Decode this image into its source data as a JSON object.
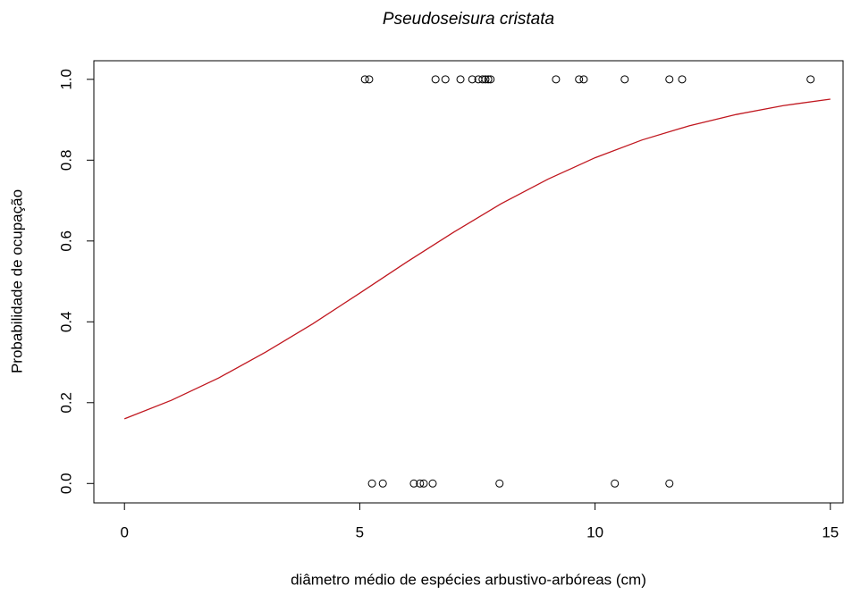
{
  "chart_data": {
    "type": "scatter",
    "title": "Pseudoseisura cristata",
    "x_label": "diâmetro médio de espécies arbustivo-arbóreas (cm)",
    "y_label": "Probabilidade de ocupação",
    "xlim": [
      -0.65,
      15.27
    ],
    "ylim": [
      -0.048,
      1.046
    ],
    "xticks": [
      0,
      5,
      10,
      15
    ],
    "yticks": [
      {
        "value": 0,
        "label": "0.0"
      },
      {
        "value": 0.2,
        "label": "0.2"
      },
      {
        "value": 0.4,
        "label": "0.4"
      },
      {
        "value": 0.6,
        "label": "0.6"
      },
      {
        "value": 0.8,
        "label": "0.8"
      },
      {
        "value": 1,
        "label": "1.0"
      }
    ],
    "grid": false,
    "series": [
      {
        "mark": "circle",
        "color": "#000000",
        "x": [
          5.11,
          5.2,
          6.61,
          6.82,
          7.14,
          7.39,
          7.52,
          7.61,
          7.67,
          7.73,
          7.78,
          9.17,
          9.66,
          9.76,
          10.63,
          11.58,
          11.85,
          14.58,
          5.26,
          5.49,
          6.15,
          6.28,
          6.36,
          6.55,
          7.97,
          10.42,
          11.58
        ],
        "values": [
          1,
          1,
          1,
          1,
          1,
          1,
          1,
          1,
          1,
          1,
          1,
          1,
          1,
          1,
          1,
          1,
          1,
          1,
          0,
          0,
          0,
          0,
          0,
          0,
          0,
          0,
          0
        ]
      },
      {
        "mark": "line",
        "color": "#c0171f",
        "x": [
          0,
          1,
          2,
          3,
          4,
          5,
          6,
          7,
          8,
          9,
          10,
          11,
          12,
          13,
          14,
          15
        ],
        "values": [
          0.16,
          0.206,
          0.261,
          0.325,
          0.395,
          0.471,
          0.548,
          0.622,
          0.692,
          0.753,
          0.806,
          0.85,
          0.885,
          0.913,
          0.935,
          0.951
        ]
      }
    ]
  }
}
